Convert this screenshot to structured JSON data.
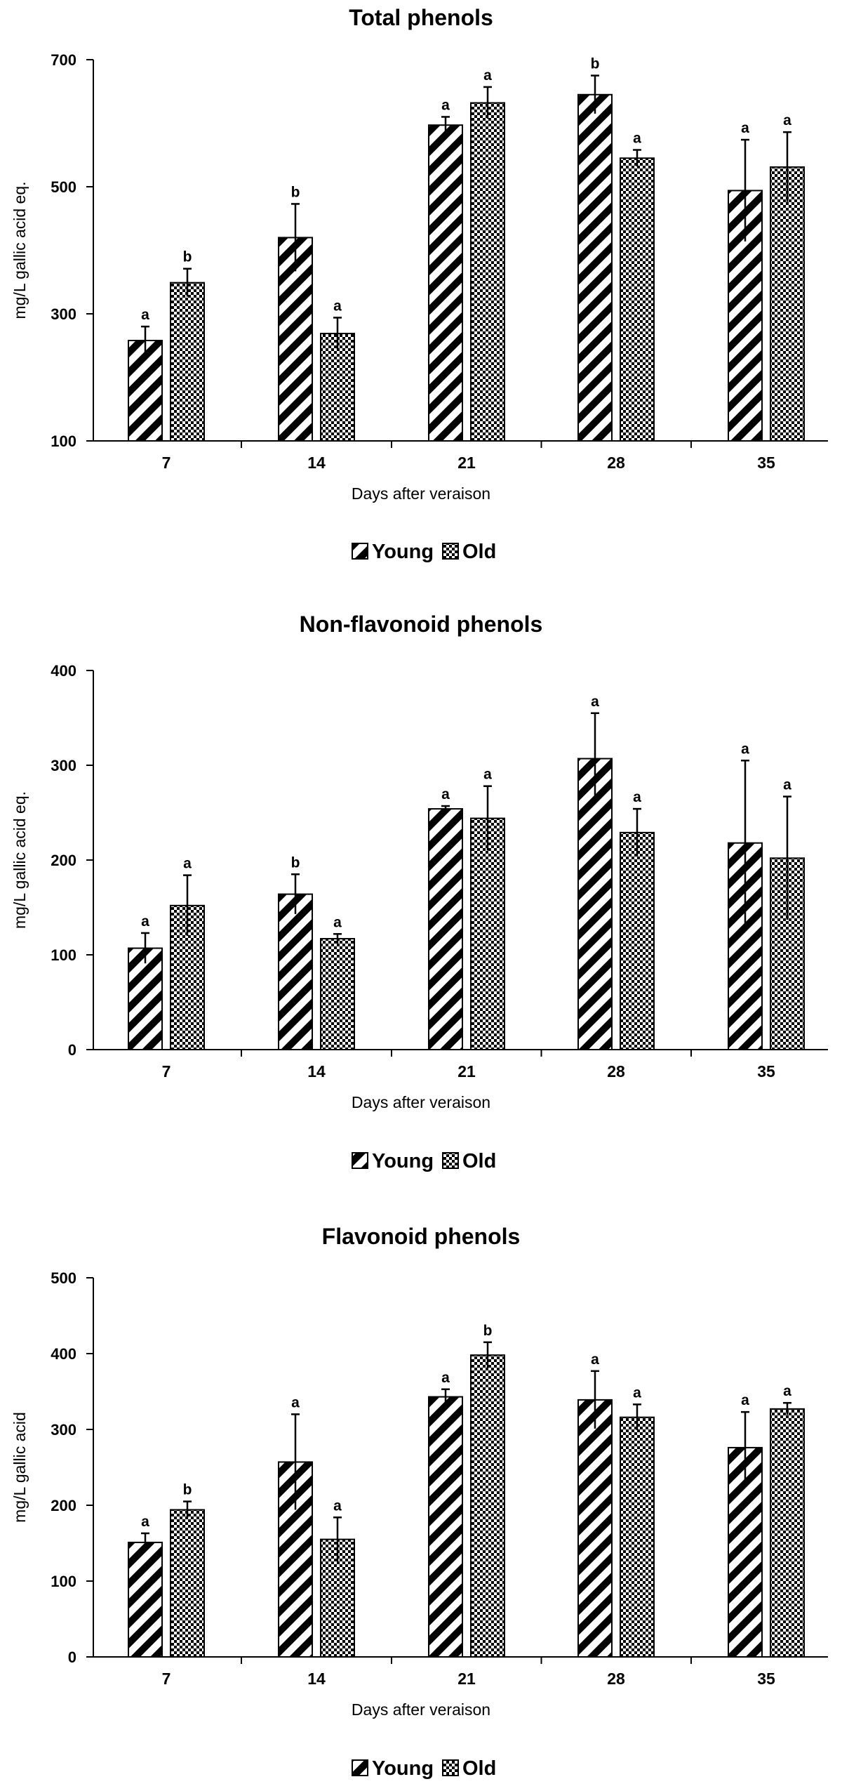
{
  "figure": {
    "legend": {
      "position": "bottom-center"
    },
    "chart_data": [
      {
        "type": "bar",
        "title": "Total phenols",
        "xlabel": "Days after veraison",
        "ylabel": "mg/L gallic acid eq.",
        "ylim": [
          100,
          700
        ],
        "yticks": [
          100,
          300,
          500,
          700
        ],
        "categories": [
          "7",
          "14",
          "21",
          "28",
          "35"
        ],
        "series": [
          {
            "name": "Young",
            "pattern": "diagonal-stripes",
            "values": [
              258,
              420,
              597,
              645,
              494
            ],
            "errors": [
              22,
              53,
              13,
              30,
              80
            ],
            "letters": [
              "a",
              "b",
              "a",
              "b",
              "a"
            ]
          },
          {
            "name": "Old",
            "pattern": "checker",
            "values": [
              349,
              269,
              632,
              545,
              531
            ],
            "errors": [
              22,
              25,
              25,
              13,
              55
            ],
            "letters": [
              "b",
              "a",
              "a",
              "a",
              "a"
            ]
          }
        ]
      },
      {
        "type": "bar",
        "title": "Non-flavonoid phenols",
        "xlabel": "Days after veraison",
        "ylabel": "mg/L gallic acid eq.",
        "ylim": [
          0,
          400
        ],
        "yticks": [
          0,
          100,
          200,
          300,
          400
        ],
        "categories": [
          "7",
          "14",
          "21",
          "28",
          "35"
        ],
        "series": [
          {
            "name": "Young",
            "pattern": "diagonal-stripes",
            "values": [
              107,
              164,
              254,
              307,
              218
            ],
            "errors": [
              16,
              21,
              3,
              48,
              87
            ],
            "letters": [
              "a",
              "b",
              "a",
              "a",
              "a"
            ]
          },
          {
            "name": "Old",
            "pattern": "checker",
            "values": [
              152,
              117,
              244,
              229,
              202
            ],
            "errors": [
              32,
              5,
              34,
              25,
              65
            ],
            "letters": [
              "a",
              "a",
              "a",
              "a",
              "a"
            ]
          }
        ]
      },
      {
        "type": "bar",
        "title": "Flavonoid phenols",
        "xlabel": "Days after veraison",
        "ylabel": "mg/L gallic acid",
        "ylim": [
          0,
          500
        ],
        "yticks": [
          0,
          100,
          200,
          300,
          400,
          500
        ],
        "categories": [
          "7",
          "14",
          "21",
          "28",
          "35"
        ],
        "series": [
          {
            "name": "Young",
            "pattern": "diagonal-stripes",
            "values": [
              151,
              257,
              343,
              339,
              276
            ],
            "errors": [
              12,
              63,
              10,
              38,
              47
            ],
            "letters": [
              "a",
              "a",
              "a",
              "a",
              "a"
            ]
          },
          {
            "name": "Old",
            "pattern": "checker",
            "values": [
              194,
              155,
              398,
              316,
              327
            ],
            "errors": [
              11,
              29,
              17,
              17,
              8
            ],
            "letters": [
              "b",
              "a",
              "b",
              "a",
              "a"
            ]
          }
        ]
      }
    ]
  }
}
